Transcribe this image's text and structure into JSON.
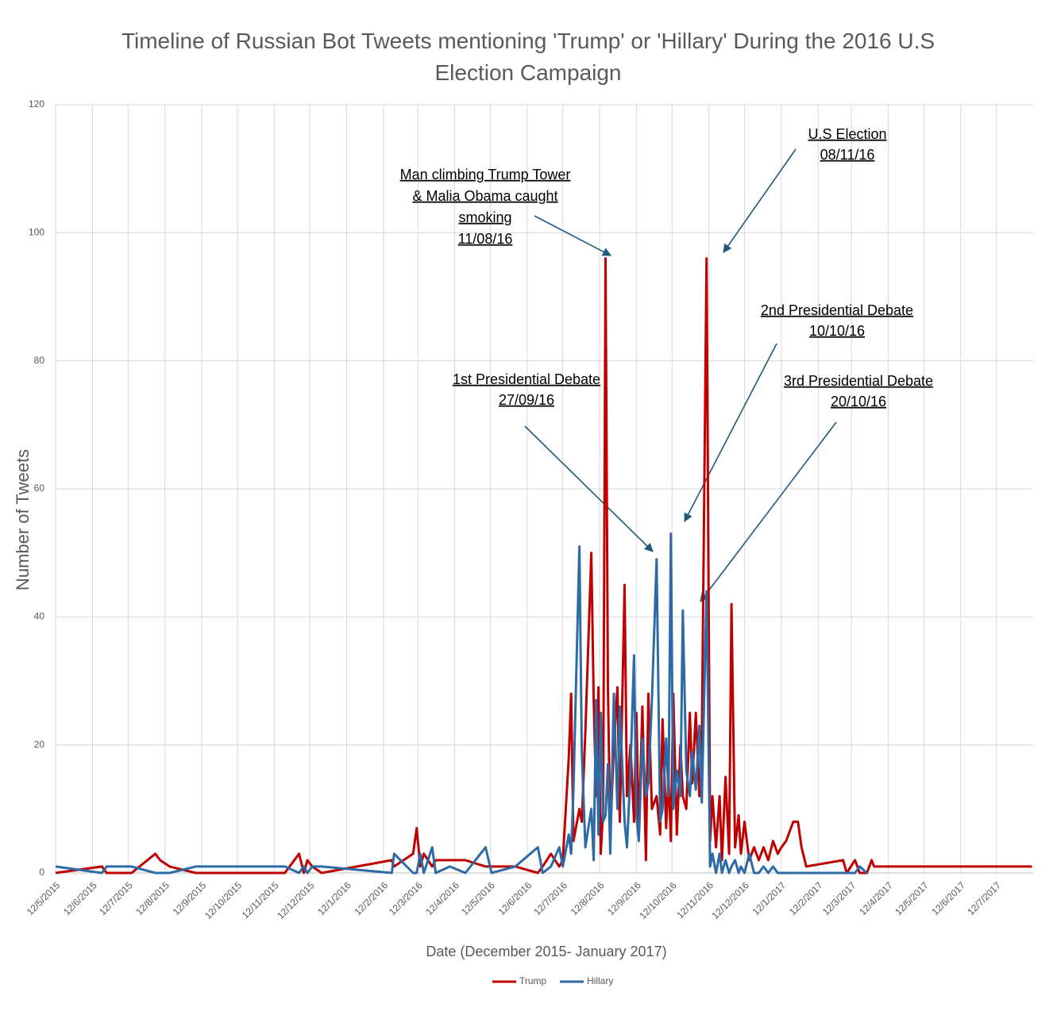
{
  "chart_data": {
    "type": "line",
    "title": "Timeline of Russian Bot Tweets mentioning 'Trump' or 'Hillary' During the 2016 U.S Election Campaign",
    "x_label": "Date (December 2015- January 2017)",
    "y_label": "Number of Tweets",
    "xlim": [
      "2015-05-12",
      "2017-08-12"
    ],
    "xticks": [
      {
        "value": "2015-05-12",
        "label": "12/5/2015"
      },
      {
        "value": "2015-06-12",
        "label": "12/6/2015"
      },
      {
        "value": "2015-07-12",
        "label": "12/7/2015"
      },
      {
        "value": "2015-08-12",
        "label": "12/8/2015"
      },
      {
        "value": "2015-09-12",
        "label": "12/9/2015"
      },
      {
        "value": "2015-10-12",
        "label": "12/10/2015"
      },
      {
        "value": "2015-11-12",
        "label": "12/11/2015"
      },
      {
        "value": "2015-12-12",
        "label": "12/12/2015"
      },
      {
        "value": "2016-01-12",
        "label": "12/1/2016"
      },
      {
        "value": "2016-02-12",
        "label": "12/2/2016"
      },
      {
        "value": "2016-03-12",
        "label": "12/3/2016"
      },
      {
        "value": "2016-04-12",
        "label": "12/4/2016"
      },
      {
        "value": "2016-05-12",
        "label": "12/5/2016"
      },
      {
        "value": "2016-06-12",
        "label": "12/6/2016"
      },
      {
        "value": "2016-07-12",
        "label": "12/7/2016"
      },
      {
        "value": "2016-08-12",
        "label": "12/8/2016"
      },
      {
        "value": "2016-09-12",
        "label": "12/9/2016"
      },
      {
        "value": "2016-10-12",
        "label": "12/10/2016"
      },
      {
        "value": "2016-11-12",
        "label": "12/11/2016"
      },
      {
        "value": "2016-12-12",
        "label": "12/12/2016"
      },
      {
        "value": "2017-01-12",
        "label": "12/1/2017"
      },
      {
        "value": "2017-02-12",
        "label": "12/2/2017"
      },
      {
        "value": "2017-03-12",
        "label": "12/3/2017"
      },
      {
        "value": "2017-04-12",
        "label": "12/4/2017"
      },
      {
        "value": "2017-05-12",
        "label": "12/5/2017"
      },
      {
        "value": "2017-06-12",
        "label": "12/6/2017"
      },
      {
        "value": "2017-07-12",
        "label": "12/7/2017"
      }
    ],
    "ylim": [
      0,
      120
    ],
    "yticks": [
      0,
      20,
      40,
      60,
      80,
      100,
      120
    ],
    "grid": true,
    "legend": "bottom",
    "x": [
      "2015-05-12",
      "2015-06-20",
      "2015-06-24",
      "2015-07-15",
      "2015-08-04",
      "2015-08-08",
      "2015-08-16",
      "2015-09-07",
      "2015-11-21",
      "2015-12-03",
      "2015-12-07",
      "2015-12-10",
      "2015-12-14",
      "2015-12-22",
      "2016-02-19",
      "2016-02-21",
      "2016-03-08",
      "2016-03-11",
      "2016-03-14",
      "2016-03-17",
      "2016-03-24",
      "2016-03-27",
      "2016-04-08",
      "2016-04-21",
      "2016-05-08",
      "2016-05-13",
      "2016-06-02",
      "2016-06-21",
      "2016-06-25",
      "2016-07-02",
      "2016-07-09",
      "2016-07-12",
      "2016-07-17",
      "2016-07-19",
      "2016-07-21",
      "2016-07-26",
      "2016-07-28",
      "2016-07-31",
      "2016-08-05",
      "2016-08-07",
      "2016-08-09",
      "2016-08-11",
      "2016-08-13",
      "2016-08-15",
      "2016-08-17",
      "2016-08-19",
      "2016-08-21",
      "2016-08-24",
      "2016-08-27",
      "2016-08-29",
      "2016-09-02",
      "2016-09-04",
      "2016-09-07",
      "2016-09-10",
      "2016-09-12",
      "2016-09-14",
      "2016-09-17",
      "2016-09-20",
      "2016-09-22",
      "2016-09-25",
      "2016-09-29",
      "2016-10-02",
      "2016-10-04",
      "2016-10-07",
      "2016-10-09",
      "2016-10-11",
      "2016-10-13",
      "2016-10-16",
      "2016-10-19",
      "2016-10-21",
      "2016-10-24",
      "2016-10-27",
      "2016-10-29",
      "2016-11-01",
      "2016-11-04",
      "2016-11-06",
      "2016-11-10",
      "2016-11-13",
      "2016-11-15",
      "2016-11-18",
      "2016-11-21",
      "2016-11-23",
      "2016-11-26",
      "2016-11-29",
      "2016-12-01",
      "2016-12-04",
      "2016-12-07",
      "2016-12-09",
      "2016-12-12",
      "2016-12-16",
      "2016-12-20",
      "2016-12-24",
      "2016-12-28",
      "2017-01-01",
      "2017-01-05",
      "2017-01-09",
      "2017-01-12",
      "2017-01-16",
      "2017-01-22",
      "2017-01-26",
      "2017-01-29",
      "2017-02-02",
      "2017-03-05",
      "2017-03-08",
      "2017-03-15",
      "2017-03-19",
      "2017-03-25",
      "2017-03-29",
      "2017-03-31",
      "2017-08-11"
    ],
    "series": [
      {
        "name": "Trump",
        "color": "#c00000",
        "values": [
          0,
          1,
          0,
          0,
          3,
          2,
          1,
          0,
          0,
          3,
          0,
          2,
          1,
          0,
          2,
          1,
          3,
          7,
          1,
          3,
          1,
          2,
          2,
          2,
          1,
          1,
          1,
          0,
          1,
          3,
          1,
          2,
          18,
          28,
          5,
          10,
          8,
          22,
          50,
          27,
          12,
          29,
          3,
          10,
          96,
          29,
          6,
          20,
          29,
          8,
          45,
          12,
          20,
          8,
          25,
          6,
          26,
          2,
          28,
          10,
          12,
          6,
          24,
          7,
          15,
          5,
          28,
          6,
          20,
          12,
          10,
          25,
          14,
          25,
          12,
          20,
          96,
          5,
          12,
          4,
          12,
          2,
          15,
          3,
          42,
          4,
          9,
          3,
          8,
          2,
          4,
          2,
          4,
          2,
          5,
          3,
          4,
          5,
          8,
          8,
          4,
          1,
          2,
          0,
          2,
          0,
          0,
          2,
          1,
          1
        ]
      },
      {
        "name": "Hillary",
        "color": "#2e6aa6",
        "values": [
          1,
          0,
          1,
          1,
          0,
          0,
          0,
          1,
          1,
          0,
          1,
          0,
          1,
          1,
          0,
          3,
          0,
          0,
          3,
          0,
          4,
          0,
          1,
          0,
          4,
          0,
          1,
          4,
          0,
          1,
          4,
          1,
          6,
          3,
          13,
          51,
          19,
          4,
          10,
          2,
          27,
          6,
          25,
          8,
          9,
          17,
          3,
          28,
          10,
          26,
          8,
          4,
          16,
          34,
          9,
          5,
          21,
          12,
          14,
          27,
          49,
          8,
          10,
          21,
          12,
          53,
          10,
          16,
          12,
          41,
          16,
          12,
          19,
          13,
          23,
          11,
          44,
          1,
          3,
          0,
          3,
          0,
          2,
          0,
          1,
          2,
          0,
          1,
          0,
          3,
          0,
          0,
          1,
          0,
          1,
          0,
          0,
          0,
          0,
          0,
          0,
          0,
          0,
          0,
          0,
          1,
          0,
          null,
          null,
          null
        ]
      }
    ],
    "annotations": [
      {
        "lines": [
          "Man climbing Trump Tower",
          "& Malia Obama caught",
          "smoking",
          "11/08/16"
        ]
      },
      {
        "lines": [
          "U.S Election",
          "08/11/16"
        ]
      },
      {
        "lines": [
          "2nd Presidential Debate",
          "10/10/16"
        ]
      },
      {
        "lines": [
          "1st Presidential Debate",
          "27/09/16"
        ]
      },
      {
        "lines": [
          "3rd Presidential Debate",
          "20/10/16"
        ]
      }
    ]
  }
}
